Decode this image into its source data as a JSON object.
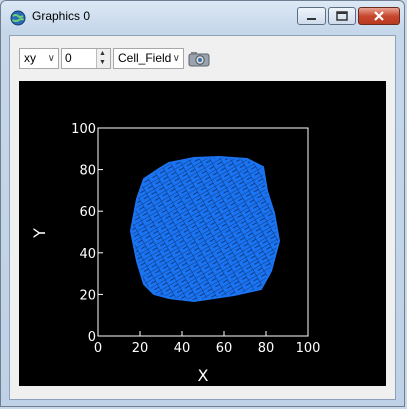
{
  "window": {
    "title": "Graphics 0",
    "icon": "globe-icon"
  },
  "titlebar_buttons": {
    "minimize": "minimize-icon",
    "maximize": "maximize-icon",
    "close": "close-icon"
  },
  "toolbar": {
    "projection": "xy",
    "slice_value": "0",
    "field": "Cell_Field",
    "camera_icon": "camera-icon"
  },
  "chart_data": {
    "type": "scatter",
    "xlabel": "X",
    "ylabel": "Y",
    "xlim": [
      0,
      100
    ],
    "ylim": [
      0,
      100
    ],
    "x_ticks": [
      "0",
      "20",
      "40",
      "60",
      "80",
      "100"
    ],
    "y_ticks": [
      "0",
      "20",
      "40",
      "60",
      "80",
      "100"
    ],
    "grid": false,
    "colors": {
      "cells": "#1a73f0",
      "background": "#000000",
      "axes": "#ffffff",
      "cell_borders": "#0b2a66"
    }
  }
}
